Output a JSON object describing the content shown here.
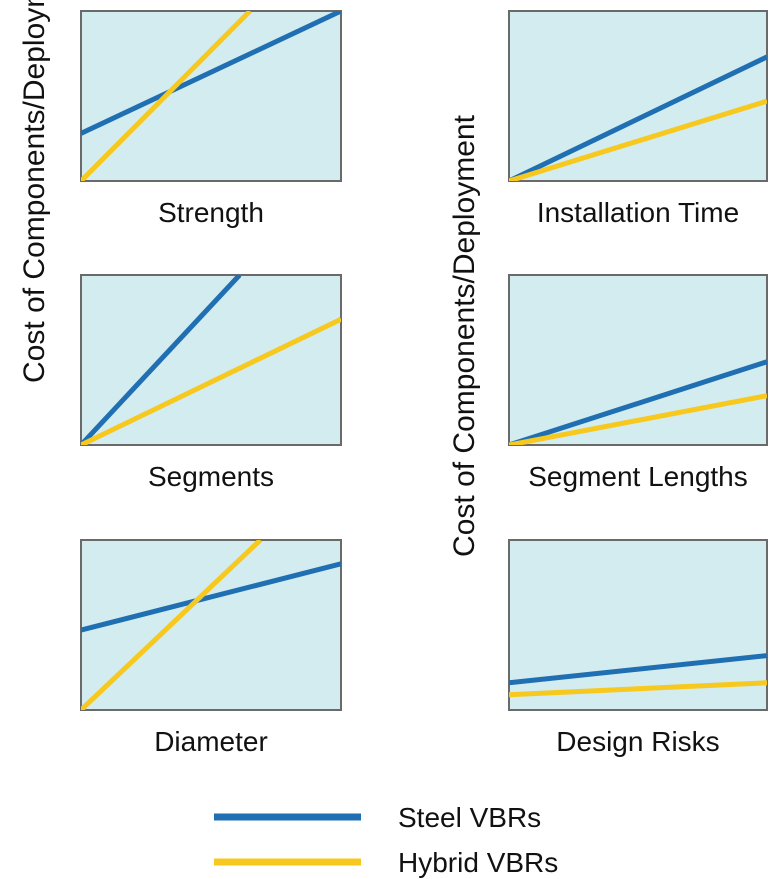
{
  "colors": {
    "steel": "#1f6fb2",
    "hybrid": "#f7c81e",
    "panel_fill": "#d3ecef",
    "panel_border": "#6a6a6a"
  },
  "y_axis_label": "Cost of Components/Deployment",
  "legend": {
    "items": [
      {
        "label": "Steel VBRs",
        "color_key": "steel"
      },
      {
        "label": "Hybrid VBRs",
        "color_key": "hybrid"
      }
    ]
  },
  "chart_data": [
    {
      "type": "line",
      "xlabel": "Strength",
      "ylabel": "Cost of Components/Deployment",
      "xlim": [
        0,
        1
      ],
      "ylim": [
        0,
        1
      ],
      "grid": false,
      "ticks": "none",
      "series": [
        {
          "name": "Steel VBRs",
          "x": [
            0,
            1
          ],
          "y": [
            0.28,
            1.0
          ]
        },
        {
          "name": "Hybrid VBRs",
          "x": [
            0,
            0.65
          ],
          "y": [
            0.0,
            1.0
          ]
        }
      ]
    },
    {
      "type": "line",
      "xlabel": "Installation Time",
      "ylabel": "Cost of Components/Deployment",
      "xlim": [
        0,
        1
      ],
      "ylim": [
        0,
        1
      ],
      "grid": false,
      "ticks": "none",
      "series": [
        {
          "name": "Steel VBRs",
          "x": [
            0,
            1
          ],
          "y": [
            0.0,
            0.73
          ]
        },
        {
          "name": "Hybrid VBRs",
          "x": [
            0,
            1
          ],
          "y": [
            0.0,
            0.47
          ]
        }
      ]
    },
    {
      "type": "line",
      "xlabel": "Segments",
      "ylabel": "Cost of Components/Deployment",
      "xlim": [
        0,
        1
      ],
      "ylim": [
        0,
        1
      ],
      "grid": false,
      "ticks": "none",
      "series": [
        {
          "name": "Steel VBRs",
          "x": [
            0,
            0.61
          ],
          "y": [
            0.0,
            1.0
          ]
        },
        {
          "name": "Hybrid VBRs",
          "x": [
            0,
            1
          ],
          "y": [
            0.0,
            0.74
          ]
        }
      ]
    },
    {
      "type": "line",
      "xlabel": "Segment Lengths",
      "ylabel": "Cost of Components/Deployment",
      "xlim": [
        0,
        1
      ],
      "ylim": [
        0,
        1
      ],
      "grid": false,
      "ticks": "none",
      "series": [
        {
          "name": "Steel VBRs",
          "x": [
            0,
            1
          ],
          "y": [
            0.0,
            0.49
          ]
        },
        {
          "name": "Hybrid VBRs",
          "x": [
            0,
            1
          ],
          "y": [
            0.0,
            0.29
          ]
        }
      ]
    },
    {
      "type": "line",
      "xlabel": "Diameter",
      "ylabel": "Cost of Components/Deployment",
      "xlim": [
        0,
        1
      ],
      "ylim": [
        0,
        1
      ],
      "grid": false,
      "ticks": "none",
      "series": [
        {
          "name": "Steel VBRs",
          "x": [
            0,
            1
          ],
          "y": [
            0.47,
            0.86
          ]
        },
        {
          "name": "Hybrid VBRs",
          "x": [
            0,
            0.69
          ],
          "y": [
            0.0,
            1.0
          ]
        }
      ]
    },
    {
      "type": "line",
      "xlabel": "Design Risks",
      "ylabel": "Cost of Components/Deployment",
      "xlim": [
        0,
        1
      ],
      "ylim": [
        0,
        1
      ],
      "grid": false,
      "ticks": "none",
      "series": [
        {
          "name": "Steel VBRs",
          "x": [
            0,
            1
          ],
          "y": [
            0.16,
            0.32
          ]
        },
        {
          "name": "Hybrid VBRs",
          "x": [
            0,
            1
          ],
          "y": [
            0.09,
            0.16
          ]
        }
      ]
    }
  ]
}
